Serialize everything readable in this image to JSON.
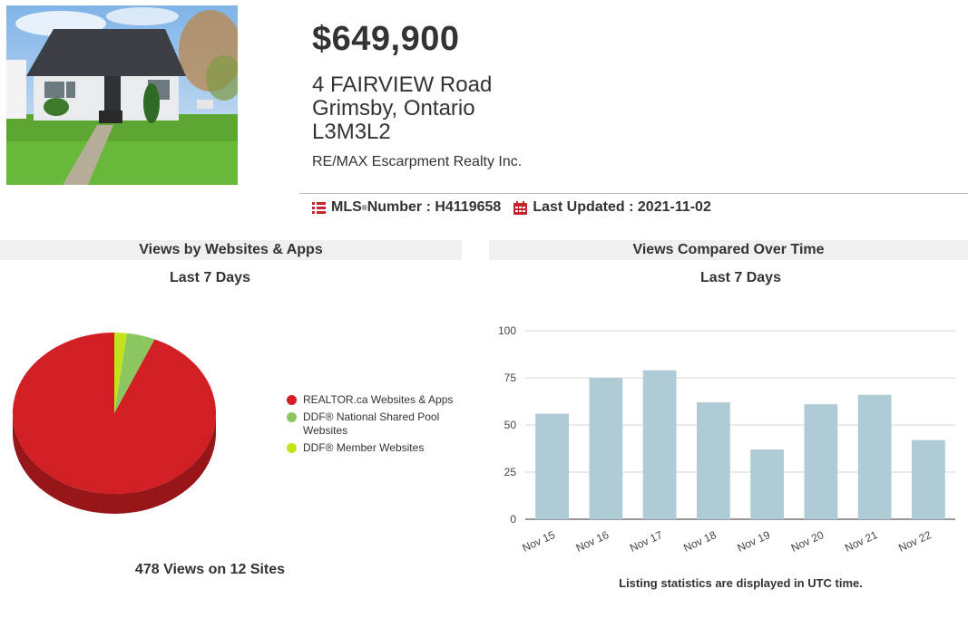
{
  "listing": {
    "price": "$649,900",
    "address_line1": "4 FAIRVIEW Road",
    "address_line2": "Grimsby, Ontario",
    "address_line3": "L3M3L2",
    "brokerage": "RE/MAX Escarpment Realty Inc.",
    "mls_label": "MLS",
    "mls_reg": "®",
    "mls_number_label": " Number : H4119658",
    "last_updated": "Last Updated : 2021-11-02"
  },
  "pie_section": {
    "header": "Views by Websites & Apps",
    "subtitle": "Last 7 Days",
    "total": "478 Views on 12 Sites"
  },
  "bar_section": {
    "header": "Views Compared Over Time",
    "subtitle": "Last 7 Days",
    "note": "Listing statistics are displayed in UTC time."
  },
  "colors": {
    "pie_red": "#d11f24",
    "pie_green": "#8cc660",
    "pie_lime": "#c0e41c",
    "bar_fill": "#aecbd6",
    "icon_red": "#c1272d"
  },
  "chart_data": [
    {
      "type": "pie",
      "legend_position": "right",
      "series": [
        {
          "name": "REALTOR.ca Websites & Apps",
          "value": 93.5,
          "color": "#d11f24"
        },
        {
          "name": "DDF® National Shared Pool Websites",
          "value": 4.5,
          "color": "#8cc660"
        },
        {
          "name": "DDF® Member Websites",
          "value": 2.0,
          "color": "#c0e41c"
        }
      ]
    },
    {
      "type": "bar",
      "categories": [
        "Nov 15",
        "Nov 16",
        "Nov 17",
        "Nov 18",
        "Nov 19",
        "Nov 20",
        "Nov 21",
        "Nov 22"
      ],
      "values": [
        56,
        75,
        79,
        62,
        37,
        61,
        66,
        42
      ],
      "ylim": [
        0,
        100
      ],
      "yticks": [
        0,
        25,
        50,
        75,
        100
      ],
      "grid": true
    }
  ]
}
